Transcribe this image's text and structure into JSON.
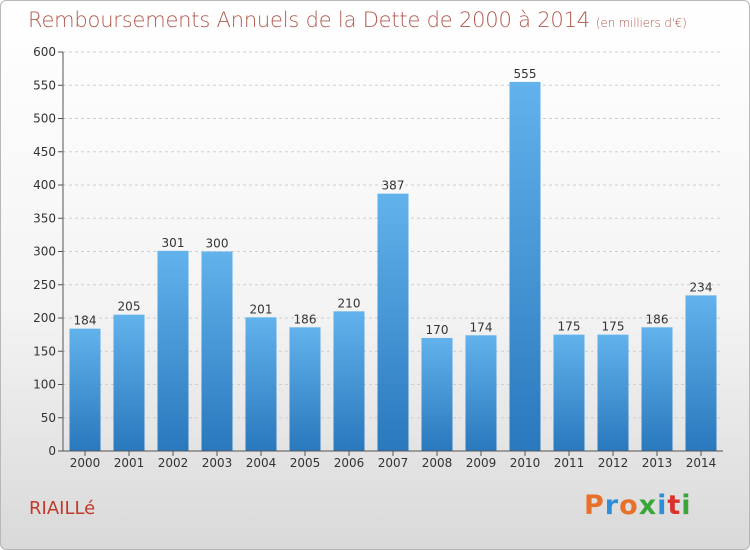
{
  "header": {
    "title": "Remboursements Annuels de la Dette de 2000 à 2014",
    "unit": "(en milliers d'€)"
  },
  "footer": {
    "commune": "RIAILLé",
    "logo": {
      "letters": [
        "P",
        "r",
        "o",
        "x",
        "i",
        "t",
        "i"
      ]
    }
  },
  "colors": {
    "title": "#b15a4f",
    "bar_top": "#62b2ec",
    "bar_bottom": "#2a78bd",
    "grid": "#cfcfcf",
    "logo": [
      "#e8702a",
      "#2f8fd6",
      "#e8702a",
      "#3aa63a",
      "#2f8fd6",
      "#d9322a",
      "#3aa63a"
    ]
  },
  "chart_data": {
    "type": "bar",
    "title": "Remboursements Annuels de la Dette de 2000 à 2014",
    "subtitle": "(en milliers d'€)",
    "categories": [
      "2000",
      "2001",
      "2002",
      "2003",
      "2004",
      "2005",
      "2006",
      "2007",
      "2008",
      "2009",
      "2010",
      "2011",
      "2012",
      "2013",
      "2014"
    ],
    "values": [
      184,
      205,
      301,
      300,
      201,
      186,
      210,
      387,
      170,
      174,
      555,
      175,
      175,
      186,
      234
    ],
    "ylim": [
      0,
      600
    ],
    "yticks": [
      0,
      50,
      100,
      150,
      200,
      250,
      300,
      350,
      400,
      450,
      500,
      550,
      600
    ],
    "grid": true,
    "data_labels": true
  }
}
